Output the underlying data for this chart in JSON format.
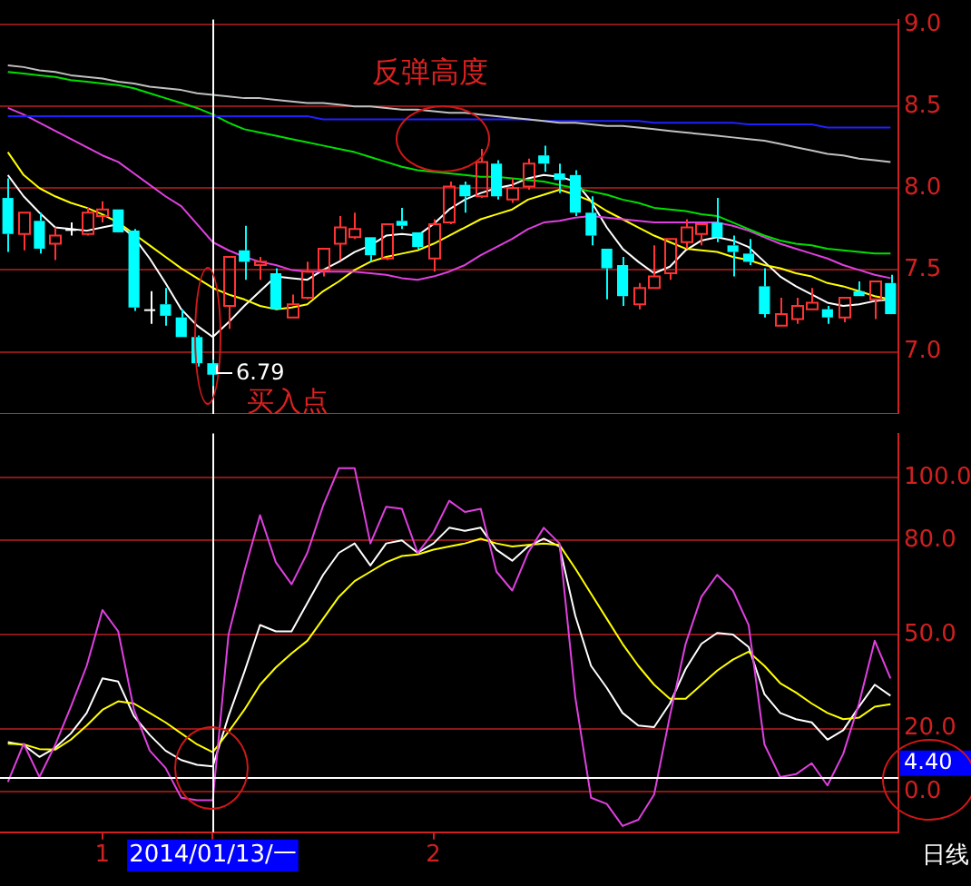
{
  "chart_data": [
    {
      "type": "candlestick",
      "categories": [
        null,
        null,
        null,
        null,
        null,
        null,
        "1",
        null,
        null,
        null,
        null,
        null,
        null,
        "2014/01/13/一",
        null,
        null,
        null,
        null,
        null,
        null,
        null,
        null,
        null,
        null,
        null,
        null,
        null,
        "2",
        null,
        null,
        null,
        null,
        null,
        null,
        null,
        null,
        null,
        null,
        null,
        null,
        null,
        null,
        null,
        null,
        null,
        null,
        null,
        null,
        null,
        null,
        null,
        null,
        null,
        null,
        null,
        null,
        null
      ],
      "ohlc": [
        [
          7.94,
          8.06,
          7.61,
          7.72
        ],
        [
          7.72,
          7.85,
          7.62,
          7.85
        ],
        [
          7.8,
          7.85,
          7.6,
          7.63
        ],
        [
          7.66,
          7.76,
          7.56,
          7.71
        ],
        [
          7.75,
          7.79,
          7.71,
          7.75
        ],
        [
          7.72,
          7.88,
          7.71,
          7.85
        ],
        [
          7.83,
          7.92,
          7.79,
          7.87
        ],
        [
          7.87,
          7.87,
          7.73,
          7.73
        ],
        [
          7.74,
          7.75,
          7.25,
          7.27
        ],
        [
          7.26,
          7.37,
          7.17,
          7.26
        ],
        [
          7.29,
          7.39,
          7.16,
          7.22
        ],
        [
          7.21,
          7.26,
          7.09,
          7.09
        ],
        [
          7.09,
          7.1,
          6.91,
          6.93
        ],
        [
          6.93,
          6.95,
          6.79,
          6.86
        ],
        [
          7.28,
          7.58,
          7.14,
          7.58
        ],
        [
          7.62,
          7.77,
          7.44,
          7.55
        ],
        [
          7.53,
          7.58,
          7.44,
          7.55
        ],
        [
          7.48,
          7.51,
          7.26,
          7.26
        ],
        [
          7.21,
          7.35,
          7.21,
          7.29
        ],
        [
          7.33,
          7.55,
          7.32,
          7.49
        ],
        [
          7.5,
          7.63,
          7.46,
          7.63
        ],
        [
          7.66,
          7.83,
          7.56,
          7.76
        ],
        [
          7.7,
          7.85,
          7.69,
          7.75
        ],
        [
          7.7,
          7.7,
          7.55,
          7.59
        ],
        [
          7.57,
          7.78,
          7.56,
          7.78
        ],
        [
          7.8,
          7.88,
          7.75,
          7.77
        ],
        [
          7.73,
          7.73,
          7.63,
          7.64
        ],
        [
          7.57,
          7.81,
          7.49,
          7.78
        ],
        [
          7.79,
          8.04,
          7.78,
          8.01
        ],
        [
          8.02,
          8.04,
          7.85,
          7.95
        ],
        [
          7.95,
          8.24,
          7.94,
          8.16
        ],
        [
          8.15,
          8.17,
          7.93,
          7.95
        ],
        [
          7.93,
          8.06,
          7.91,
          8.0
        ],
        [
          8.01,
          8.18,
          7.99,
          8.15
        ],
        [
          8.2,
          8.26,
          8.1,
          8.15
        ],
        [
          8.09,
          8.15,
          7.97,
          8.05
        ],
        [
          8.08,
          8.11,
          7.83,
          7.85
        ],
        [
          7.85,
          7.95,
          7.65,
          7.71
        ],
        [
          7.63,
          7.63,
          7.32,
          7.51
        ],
        [
          7.53,
          7.58,
          7.28,
          7.34
        ],
        [
          7.29,
          7.42,
          7.26,
          7.39
        ],
        [
          7.39,
          7.65,
          7.39,
          7.46
        ],
        [
          7.48,
          7.69,
          7.44,
          7.69
        ],
        [
          7.67,
          7.81,
          7.63,
          7.76
        ],
        [
          7.72,
          7.78,
          7.65,
          7.78
        ],
        [
          7.79,
          7.94,
          7.67,
          7.7
        ],
        [
          7.65,
          7.71,
          7.46,
          7.61
        ],
        [
          7.6,
          7.69,
          7.53,
          7.55
        ],
        [
          7.4,
          7.51,
          7.21,
          7.23
        ],
        [
          7.16,
          7.33,
          7.16,
          7.23
        ],
        [
          7.2,
          7.33,
          7.17,
          7.28
        ],
        [
          7.26,
          7.39,
          7.26,
          7.3
        ],
        [
          7.26,
          7.28,
          7.17,
          7.21
        ],
        [
          7.21,
          7.33,
          7.18,
          7.33
        ],
        [
          7.37,
          7.43,
          7.34,
          7.34
        ],
        [
          7.32,
          7.43,
          7.2,
          7.43
        ],
        [
          7.42,
          7.47,
          7.23,
          7.23
        ]
      ],
      "colors": [
        "#00ffff",
        "#ff3333",
        "#00ffff",
        "#ff3333",
        "#ffffff",
        "#ff3333",
        "#ff3333",
        "#00ffff",
        "#00ffff",
        "#ffffff",
        "#00ffff",
        "#00ffff",
        "#00ffff",
        "#00ffff",
        "#ff3333",
        "#00ffff",
        "#ff3333",
        "#00ffff",
        "#ff3333",
        "#ff3333",
        "#ff3333",
        "#ff3333",
        "#ff3333",
        "#00ffff",
        "#ff3333",
        "#00ffff",
        "#00ffff",
        "#ff3333",
        "#ff3333",
        "#00ffff",
        "#ff3333",
        "#00ffff",
        "#ff3333",
        "#ff3333",
        "#00ffff",
        "#00ffff",
        "#00ffff",
        "#00ffff",
        "#00ffff",
        "#00ffff",
        "#ff3333",
        "#ff3333",
        "#ff3333",
        "#ff3333",
        "#ff3333",
        "#00ffff",
        "#00ffff",
        "#00ffff",
        "#00ffff",
        "#ff3333",
        "#ff3333",
        "#ff3333",
        "#00ffff",
        "#ff3333",
        "#00ffff",
        "#ff3333",
        "#00ffff"
      ],
      "series": [
        {
          "type": "line",
          "color": "#c0c0c0",
          "values": [
            8.75,
            8.74,
            8.72,
            8.71,
            8.69,
            8.68,
            8.67,
            8.65,
            8.64,
            8.62,
            8.61,
            8.6,
            8.58,
            8.57,
            8.56,
            8.55,
            8.55,
            8.54,
            8.53,
            8.52,
            8.52,
            8.51,
            8.5,
            8.5,
            8.49,
            8.48,
            8.48,
            8.47,
            8.46,
            8.46,
            8.45,
            8.44,
            8.43,
            8.42,
            8.41,
            8.4,
            8.4,
            8.39,
            8.38,
            8.38,
            8.37,
            8.36,
            8.35,
            8.34,
            8.33,
            8.32,
            8.31,
            8.3,
            8.29,
            8.27,
            8.25,
            8.23,
            8.21,
            8.2,
            8.18,
            8.17,
            8.16
          ]
        },
        {
          "type": "line",
          "color": "#2020ff",
          "values": [
            8.44,
            8.44,
            8.44,
            8.44,
            8.44,
            8.44,
            8.44,
            8.44,
            8.44,
            8.44,
            8.44,
            8.44,
            8.44,
            8.44,
            8.44,
            8.44,
            8.44,
            8.44,
            8.44,
            8.44,
            8.42,
            8.42,
            8.42,
            8.42,
            8.42,
            8.42,
            8.42,
            8.42,
            8.42,
            8.42,
            8.42,
            8.42,
            8.42,
            8.42,
            8.41,
            8.41,
            8.41,
            8.41,
            8.41,
            8.41,
            8.41,
            8.4,
            8.4,
            8.4,
            8.4,
            8.4,
            8.4,
            8.39,
            8.39,
            8.39,
            8.39,
            8.39,
            8.37,
            8.37,
            8.37,
            8.37,
            8.37
          ]
        },
        {
          "type": "line",
          "color": "#00e000",
          "values": [
            8.71,
            8.7,
            8.69,
            8.68,
            8.66,
            8.65,
            8.64,
            8.63,
            8.61,
            8.58,
            8.55,
            8.52,
            8.49,
            8.45,
            8.4,
            8.36,
            8.34,
            8.32,
            8.3,
            8.28,
            8.26,
            8.24,
            8.22,
            8.19,
            8.16,
            8.13,
            8.11,
            8.1,
            8.09,
            8.08,
            8.07,
            8.07,
            8.06,
            8.05,
            8.04,
            8.02,
            8.0,
            7.98,
            7.96,
            7.93,
            7.91,
            7.88,
            7.87,
            7.86,
            7.84,
            7.83,
            7.79,
            7.75,
            7.71,
            7.68,
            7.66,
            7.65,
            7.63,
            7.62,
            7.61,
            7.6,
            7.6
          ]
        },
        {
          "type": "line",
          "color": "#e040e0",
          "values": [
            8.49,
            8.45,
            8.4,
            8.35,
            8.3,
            8.25,
            8.2,
            8.16,
            8.09,
            8.02,
            7.95,
            7.89,
            7.78,
            7.67,
            7.62,
            7.58,
            7.55,
            7.53,
            7.5,
            7.49,
            7.49,
            7.49,
            7.49,
            7.48,
            7.47,
            7.45,
            7.44,
            7.46,
            7.49,
            7.53,
            7.59,
            7.64,
            7.69,
            7.75,
            7.79,
            7.8,
            7.82,
            7.83,
            7.82,
            7.81,
            7.8,
            7.79,
            7.79,
            7.79,
            7.79,
            7.79,
            7.77,
            7.74,
            7.7,
            7.66,
            7.63,
            7.6,
            7.57,
            7.53,
            7.5,
            7.47,
            7.45
          ]
        },
        {
          "type": "line",
          "color": "#ffff00",
          "values": [
            8.22,
            8.08,
            8.0,
            7.95,
            7.91,
            7.88,
            7.84,
            7.79,
            7.72,
            7.65,
            7.58,
            7.51,
            7.45,
            7.39,
            7.35,
            7.32,
            7.28,
            7.26,
            7.27,
            7.29,
            7.37,
            7.43,
            7.5,
            7.55,
            7.58,
            7.6,
            7.62,
            7.66,
            7.71,
            7.76,
            7.81,
            7.84,
            7.87,
            7.93,
            7.96,
            7.99,
            7.96,
            7.92,
            7.86,
            7.81,
            7.76,
            7.71,
            7.67,
            7.63,
            7.62,
            7.61,
            7.58,
            7.56,
            7.53,
            7.51,
            7.48,
            7.46,
            7.42,
            7.4,
            7.37,
            7.34,
            7.32
          ]
        },
        {
          "type": "line",
          "color": "#ffffff",
          "values": [
            8.08,
            7.95,
            7.85,
            7.76,
            7.75,
            7.74,
            7.76,
            7.78,
            7.7,
            7.57,
            7.42,
            7.26,
            7.16,
            7.09,
            7.18,
            7.28,
            7.37,
            7.46,
            7.45,
            7.44,
            7.5,
            7.55,
            7.61,
            7.65,
            7.71,
            7.72,
            7.71,
            7.78,
            7.87,
            7.93,
            7.97,
            8.0,
            8.02,
            8.06,
            8.08,
            8.07,
            8.04,
            7.92,
            7.76,
            7.63,
            7.55,
            7.48,
            7.52,
            7.62,
            7.68,
            7.7,
            7.68,
            7.64,
            7.55,
            7.46,
            7.4,
            7.35,
            7.3,
            7.28,
            7.29,
            7.31,
            7.32
          ]
        }
      ],
      "ylim": [
        6.62,
        9.03
      ],
      "yticks": [
        {
          "value": 7,
          "label": "7.0"
        },
        {
          "value": 7.5,
          "label": "7.5"
        },
        {
          "value": 8,
          "label": "8.0"
        },
        {
          "value": 8.5,
          "label": "8.5"
        },
        {
          "value": 9,
          "label": "9.0"
        }
      ],
      "grid": "y",
      "tick_labels": "y",
      "ref_lines": [
        {
          "axis": "x",
          "value": "2014/01/13/一",
          "color": "#ffffff"
        }
      ],
      "annotations": [
        "反弹高度",
        "买入点",
        "6.79"
      ]
    },
    {
      "type": "line",
      "categories": [
        null,
        null,
        null,
        null,
        null,
        null,
        "1",
        null,
        null,
        null,
        null,
        null,
        null,
        "2014/01/13/一",
        null,
        null,
        null,
        null,
        null,
        null,
        null,
        null,
        null,
        null,
        null,
        null,
        null,
        "2",
        null,
        null,
        null,
        null,
        null,
        null,
        null,
        null,
        null,
        null,
        null,
        null,
        null,
        null,
        null,
        null,
        null,
        null,
        null,
        null,
        null,
        null,
        null,
        null,
        null,
        null,
        null,
        null,
        null
      ],
      "series": [
        {
          "color": "#e040e0",
          "values": [
            3,
            15.2,
            4.6,
            14.8,
            27,
            40,
            57.8,
            51,
            26,
            13,
            7.5,
            -2,
            -2.8,
            -2.8,
            50,
            70,
            88,
            73,
            66,
            76,
            91,
            103,
            103,
            79,
            90.7,
            90,
            76,
            82.5,
            92.6,
            89,
            90,
            70,
            64,
            76,
            84,
            79,
            30,
            -2,
            -4,
            -11,
            -9,
            -1,
            24,
            47,
            62,
            69,
            64,
            53,
            15,
            4.6,
            5.5,
            9,
            1.9,
            12,
            28,
            48,
            36
          ]
        },
        {
          "color": "#ffff00",
          "values": [
            15.2,
            15,
            13.5,
            13.3,
            16.5,
            21,
            26,
            28.7,
            28,
            25,
            22,
            18.5,
            15,
            12.5,
            19,
            26,
            34,
            39.5,
            44,
            48,
            55,
            62,
            67,
            70,
            73,
            75,
            75.5,
            77,
            78,
            79,
            80.5,
            79,
            78,
            78.5,
            79,
            78.5,
            71,
            63,
            55,
            47,
            40,
            34,
            29.5,
            29.5,
            34,
            38.5,
            42,
            44.5,
            40,
            34.5,
            31.5,
            28,
            25,
            23,
            23.5,
            27,
            27.8
          ]
        },
        {
          "color": "#ffffff",
          "values": [
            15.7,
            14.8,
            11,
            13.9,
            18.5,
            25,
            36,
            35,
            24,
            18,
            13,
            10,
            8.5,
            8,
            24,
            38,
            53,
            51,
            51,
            60,
            69,
            76,
            79,
            72,
            79,
            80,
            76,
            79,
            84,
            83,
            84,
            77,
            73.5,
            78,
            80.5,
            78,
            56,
            40,
            33,
            25,
            21,
            20.5,
            28,
            39,
            47,
            50.5,
            50,
            46,
            31,
            25,
            23,
            22,
            16.5,
            19.5,
            27,
            34,
            30.5
          ]
        }
      ],
      "ylim": [
        -13,
        114
      ],
      "yticks": [
        {
          "value": 0,
          "label": "0.0"
        },
        {
          "value": 20,
          "label": "20.0"
        },
        {
          "value": 50,
          "label": "50.0"
        },
        {
          "value": 80,
          "label": "80.0"
        },
        {
          "value": 100,
          "label": "100.0"
        }
      ],
      "grid": "y",
      "ref_lines": [
        {
          "axis": "x",
          "value": "2014/01/13/一",
          "color": "#ffffff"
        },
        {
          "axis": "y",
          "value": 4.4,
          "label": "4.40",
          "color": "#ffffff"
        }
      ],
      "annotations": [
        "日线"
      ]
    }
  ]
}
